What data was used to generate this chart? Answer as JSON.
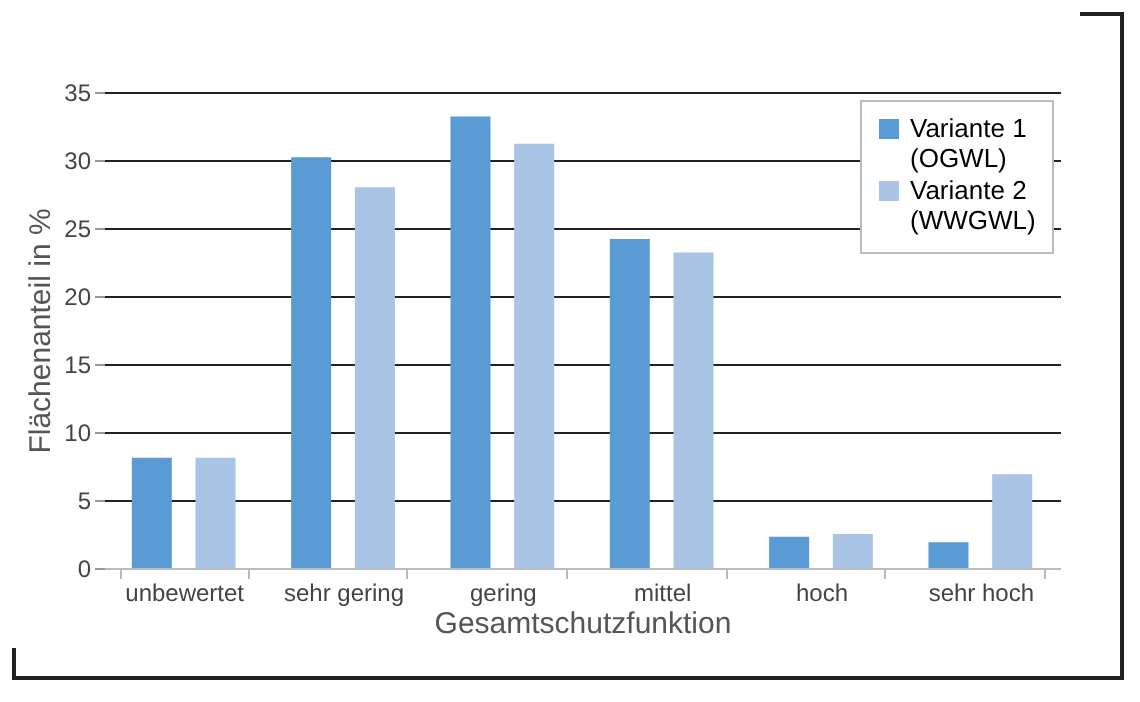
{
  "chart_data": {
    "type": "bar",
    "xlabel": "Gesamtschutzfunktion",
    "ylabel": "Flächenanteil in %",
    "categories": [
      "unbewertet",
      "sehr gering",
      "gering",
      "mittel",
      "hoch",
      "sehr hoch"
    ],
    "series": [
      {
        "name": "Variante 1 (OGWL)",
        "color": "#5b9bd5",
        "values": [
          8.1,
          30.2,
          33.2,
          24.2,
          2.3,
          1.9
        ]
      },
      {
        "name": "Variante 2 (WWGWL)",
        "color": "#a9c4e4",
        "values": [
          8.1,
          28.0,
          31.2,
          23.2,
          2.5,
          6.9
        ]
      }
    ],
    "ylim": [
      0,
      35
    ],
    "yticks": [
      0,
      5,
      10,
      15,
      20,
      25,
      30,
      35
    ],
    "grid": "y",
    "legend": "top right"
  }
}
